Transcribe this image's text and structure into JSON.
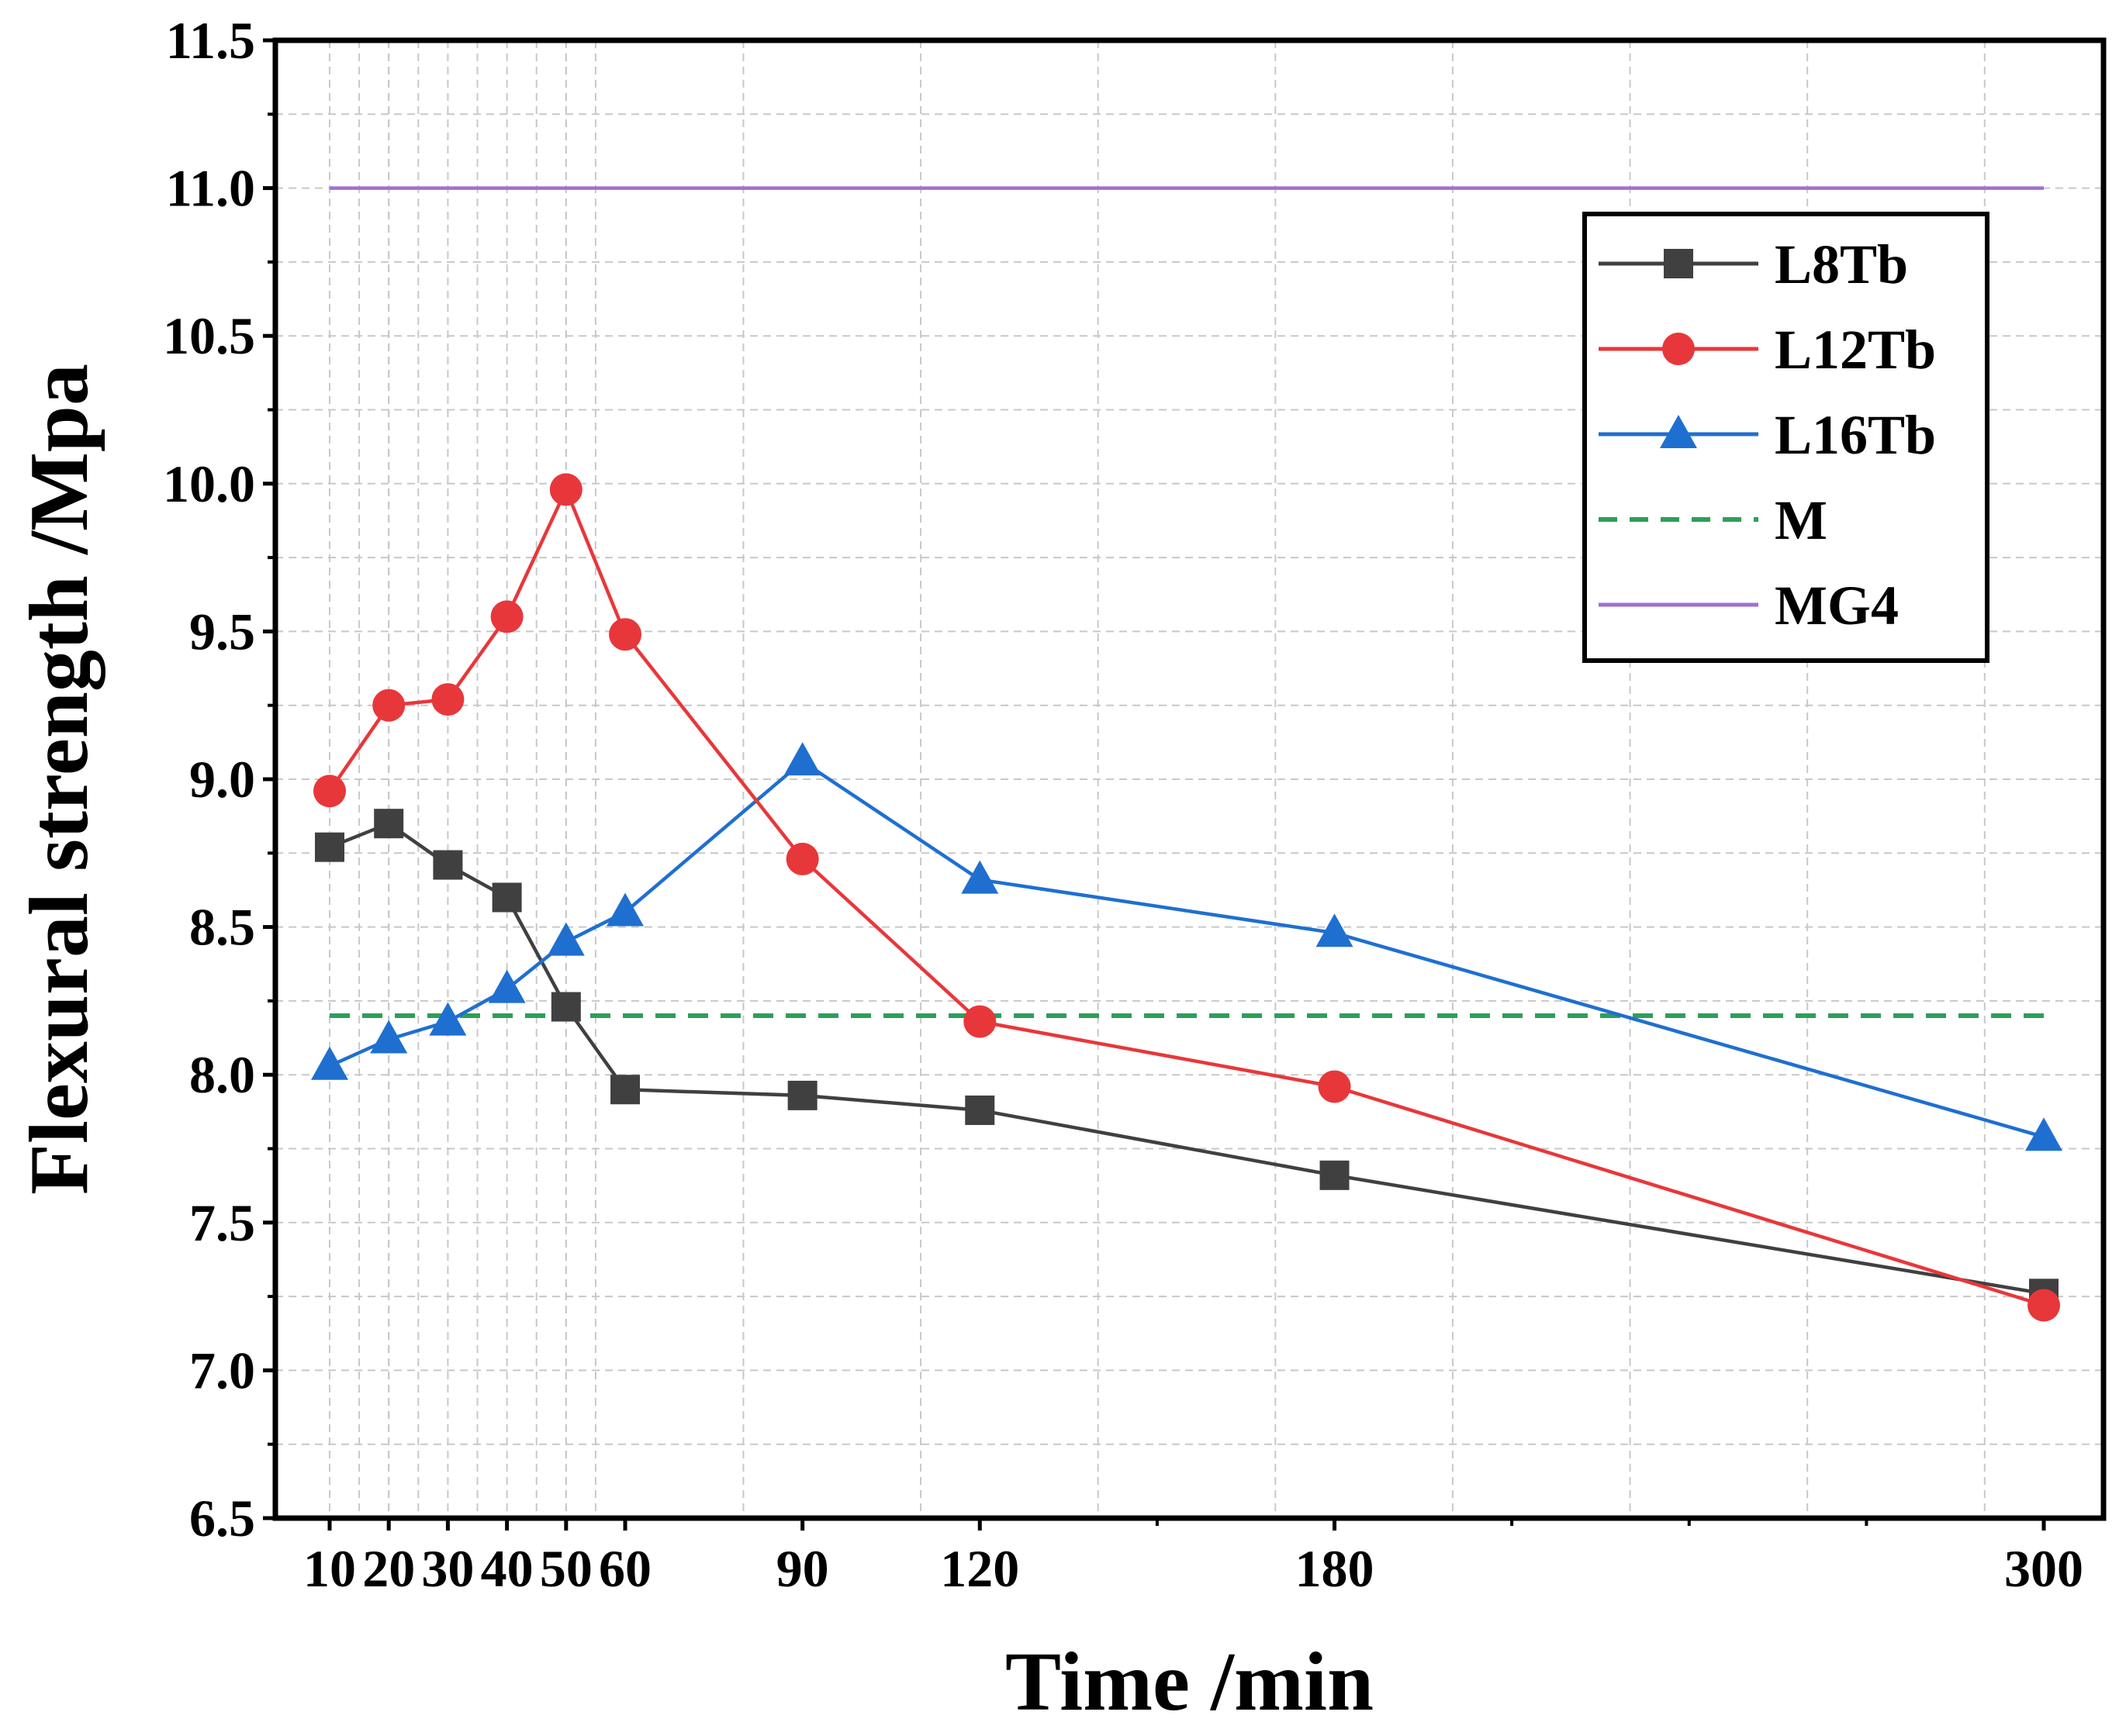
{
  "chart_data": {
    "type": "line",
    "title": "",
    "xlabel": "Time /min",
    "ylabel": "Flexural strength /Mpa",
    "xlim": [
      0,
      310
    ],
    "ylim": [
      6.5,
      11.5
    ],
    "grid": true,
    "legend_position": "top-right",
    "x_ticks": [
      10,
      20,
      30,
      40,
      50,
      60,
      90,
      120,
      180,
      300
    ],
    "x_tick_labels": [
      "10",
      "20",
      "30",
      "40",
      "50",
      "60",
      "90",
      "120",
      "180",
      "300"
    ],
    "y_ticks": [
      6.5,
      7.0,
      7.5,
      8.0,
      8.5,
      9.0,
      9.5,
      10.0,
      10.5,
      11.0,
      11.5
    ],
    "y_tick_labels": [
      "6.5",
      "7.0",
      "7.5",
      "8.0",
      "8.5",
      "9.0",
      "9.5",
      "10.0",
      "10.5",
      "11.0",
      "11.5"
    ],
    "series": [
      {
        "name": "L8Tb",
        "color": "#404040",
        "marker": "square",
        "style": "solid",
        "x": [
          10,
          20,
          30,
          40,
          50,
          60,
          90,
          120,
          180,
          300
        ],
        "values": [
          8.77,
          8.85,
          8.71,
          8.6,
          8.23,
          7.95,
          7.93,
          7.88,
          7.66,
          7.26
        ]
      },
      {
        "name": "L12Tb",
        "color": "#e8373a",
        "marker": "circle",
        "style": "solid",
        "x": [
          10,
          20,
          30,
          40,
          50,
          60,
          90,
          120,
          180,
          300
        ],
        "values": [
          8.96,
          9.25,
          9.27,
          9.55,
          9.98,
          9.49,
          8.73,
          8.18,
          7.96,
          7.22
        ]
      },
      {
        "name": "L16Tb",
        "color": "#1f6fd1",
        "marker": "triangle",
        "style": "solid",
        "x": [
          10,
          20,
          30,
          40,
          50,
          60,
          90,
          120,
          180,
          300
        ],
        "values": [
          8.03,
          8.12,
          8.18,
          8.29,
          8.45,
          8.55,
          9.06,
          8.66,
          8.48,
          7.79
        ]
      },
      {
        "name": "M",
        "color": "#2e9e5a",
        "marker": "none",
        "style": "dashed",
        "x": [
          10,
          300
        ],
        "values": [
          8.2,
          8.2
        ]
      },
      {
        "name": "MG4",
        "color": "#a070d0",
        "marker": "none",
        "style": "solid",
        "x": [
          10,
          300
        ],
        "values": [
          11.0,
          11.0
        ]
      }
    ]
  }
}
